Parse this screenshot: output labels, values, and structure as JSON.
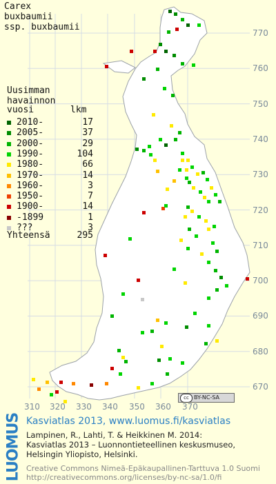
{
  "species": [
    "Carex",
    "buxbaumii",
    "ssp. buxbaumii"
  ],
  "legend": {
    "title": [
      "Uusimman",
      "havainnon"
    ],
    "col_year": "vuosi",
    "col_count": "lkm",
    "items": [
      {
        "label": "2010-",
        "count": "17",
        "color": "#006400"
      },
      {
        "label": "2005-",
        "count": "37",
        "color": "#008c00"
      },
      {
        "label": "2000-",
        "count": "29",
        "color": "#00b400"
      },
      {
        "label": "1990-",
        "count": "104",
        "color": "#00d400"
      },
      {
        "label": "1980-",
        "count": "66",
        "color": "#ffea00"
      },
      {
        "label": "1970-",
        "count": "14",
        "color": "#ffc000"
      },
      {
        "label": "1960-",
        "count": "3",
        "color": "#ff8800"
      },
      {
        "label": "1950-",
        "count": "7",
        "color": "#ee4000"
      },
      {
        "label": "1900-",
        "count": "14",
        "color": "#cc0000"
      },
      {
        "label": "-1899",
        "count": "1",
        "color": "#880000"
      },
      {
        "label": "???",
        "count": "3",
        "color": "#c8c8c8"
      }
    ],
    "total_label": "Yhteensä",
    "total_count": "295"
  },
  "axes": {
    "x_ticks": [
      "310",
      "320",
      "330",
      "340",
      "350",
      "360",
      "370"
    ],
    "y_ticks": [
      "770",
      "760",
      "750",
      "740",
      "730",
      "720",
      "710",
      "700",
      "690",
      "680",
      "670"
    ]
  },
  "map_colors": {
    "land": "#ffffff",
    "background": "#ffffde",
    "outline": "#9aa0a8",
    "grid": "#d6dce4"
  },
  "cc_badge": "BY-NC-SA",
  "brand": "LUOMUS",
  "atlas_title": "Kasviatlas 2013, www.luomus.fi/kasviatlas",
  "citation": [
    "Lampinen, R., Lahti, T. & Heikkinen M. 2014:",
    "Kasviatlas 2013 – Luonnontieteellinen keskusmuseo,",
    "Helsingin Yliopisto, Helsinki."
  ],
  "license": [
    "Creative Commons Nimeä-Epäkaupallinen-Tarttuva 1.0 Suomi",
    "http://creativecommons.org/licenses/by-nc-sa/1.0/fi"
  ]
}
